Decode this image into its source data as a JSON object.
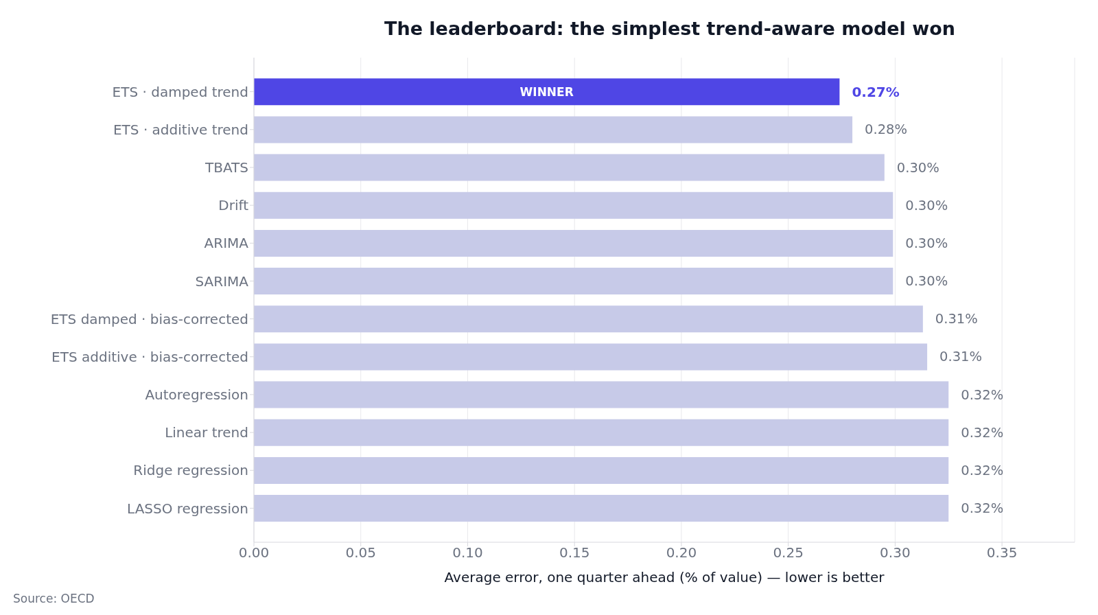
{
  "chart_data": {
    "type": "bar",
    "orientation": "horizontal",
    "title": "The leaderboard: the simplest trend-aware model won",
    "xlabel": "Average error, one quarter ahead (% of value) — lower is better",
    "categories": [
      "ETS · damped trend",
      "ETS · additive trend",
      "TBATS",
      "Drift",
      "ARIMA",
      "SARIMA",
      "ETS damped · bias-corrected",
      "ETS additive · bias-corrected",
      "Autoregression",
      "Linear trend",
      "Ridge regression",
      "LASSO regression"
    ],
    "values": [
      0.274,
      0.28,
      0.295,
      0.299,
      0.299,
      0.299,
      0.313,
      0.315,
      0.325,
      0.325,
      0.325,
      0.325
    ],
    "value_labels": [
      "0.27%",
      "0.28%",
      "0.30%",
      "0.30%",
      "0.30%",
      "0.30%",
      "0.31%",
      "0.31%",
      "0.32%",
      "0.32%",
      "0.32%",
      "0.32%"
    ],
    "colors": [
      "#4f46e5",
      "#c7cae8",
      "#c7cae8",
      "#c7cae8",
      "#c7cae8",
      "#c7cae8",
      "#c7cae8",
      "#c7cae8",
      "#c7cae8",
      "#c7cae8",
      "#c7cae8",
      "#c7cae8"
    ],
    "xlim": [
      0,
      0.384
    ],
    "xticks": [
      {
        "value": 0,
        "label": "0.00"
      },
      {
        "value": 0.05,
        "label": "0.05"
      },
      {
        "value": 0.1,
        "label": "0.10"
      },
      {
        "value": 0.15,
        "label": "0.15"
      },
      {
        "value": 0.2,
        "label": "0.20"
      },
      {
        "value": 0.25,
        "label": "0.25"
      },
      {
        "value": 0.3,
        "label": "0.30"
      },
      {
        "value": 0.35,
        "label": "0.35"
      }
    ],
    "grid": "x",
    "annotations": [
      "WINNER",
      "Source: OECD"
    ]
  }
}
